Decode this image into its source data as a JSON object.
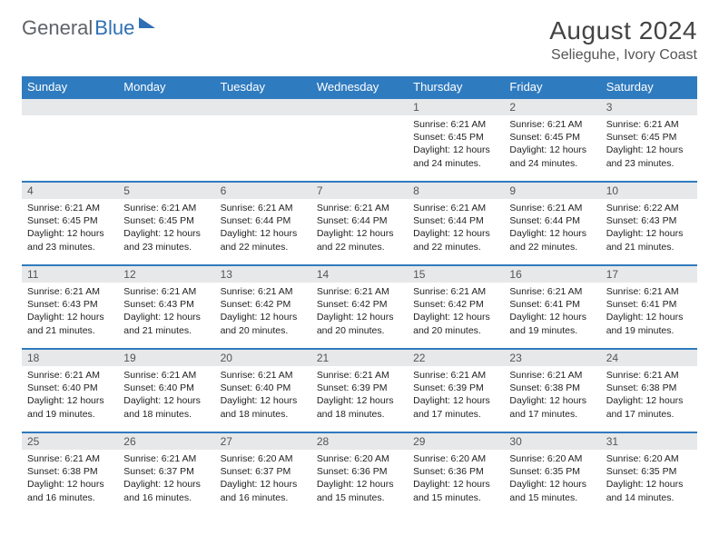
{
  "logo": {
    "word1": "General",
    "word2": "Blue"
  },
  "title": "August 2024",
  "location": "Selieguhe, Ivory Coast",
  "colors": {
    "header_bg": "#2f7bbf",
    "header_text": "#ffffff",
    "daynum_bg": "#e7e8ea",
    "row_border": "#2f7bbf",
    "logo_gray": "#5f6368",
    "logo_blue": "#2f6fb5"
  },
  "weekdays": [
    "Sunday",
    "Monday",
    "Tuesday",
    "Wednesday",
    "Thursday",
    "Friday",
    "Saturday"
  ],
  "cells": [
    {
      "day": "",
      "lines": []
    },
    {
      "day": "",
      "lines": []
    },
    {
      "day": "",
      "lines": []
    },
    {
      "day": "",
      "lines": []
    },
    {
      "day": "1",
      "lines": [
        "Sunrise: 6:21 AM",
        "Sunset: 6:45 PM",
        "Daylight: 12 hours and 24 minutes."
      ]
    },
    {
      "day": "2",
      "lines": [
        "Sunrise: 6:21 AM",
        "Sunset: 6:45 PM",
        "Daylight: 12 hours and 24 minutes."
      ]
    },
    {
      "day": "3",
      "lines": [
        "Sunrise: 6:21 AM",
        "Sunset: 6:45 PM",
        "Daylight: 12 hours and 23 minutes."
      ]
    },
    {
      "day": "4",
      "lines": [
        "Sunrise: 6:21 AM",
        "Sunset: 6:45 PM",
        "Daylight: 12 hours and 23 minutes."
      ]
    },
    {
      "day": "5",
      "lines": [
        "Sunrise: 6:21 AM",
        "Sunset: 6:45 PM",
        "Daylight: 12 hours and 23 minutes."
      ]
    },
    {
      "day": "6",
      "lines": [
        "Sunrise: 6:21 AM",
        "Sunset: 6:44 PM",
        "Daylight: 12 hours and 22 minutes."
      ]
    },
    {
      "day": "7",
      "lines": [
        "Sunrise: 6:21 AM",
        "Sunset: 6:44 PM",
        "Daylight: 12 hours and 22 minutes."
      ]
    },
    {
      "day": "8",
      "lines": [
        "Sunrise: 6:21 AM",
        "Sunset: 6:44 PM",
        "Daylight: 12 hours and 22 minutes."
      ]
    },
    {
      "day": "9",
      "lines": [
        "Sunrise: 6:21 AM",
        "Sunset: 6:44 PM",
        "Daylight: 12 hours and 22 minutes."
      ]
    },
    {
      "day": "10",
      "lines": [
        "Sunrise: 6:22 AM",
        "Sunset: 6:43 PM",
        "Daylight: 12 hours and 21 minutes."
      ]
    },
    {
      "day": "11",
      "lines": [
        "Sunrise: 6:21 AM",
        "Sunset: 6:43 PM",
        "Daylight: 12 hours and 21 minutes."
      ]
    },
    {
      "day": "12",
      "lines": [
        "Sunrise: 6:21 AM",
        "Sunset: 6:43 PM",
        "Daylight: 12 hours and 21 minutes."
      ]
    },
    {
      "day": "13",
      "lines": [
        "Sunrise: 6:21 AM",
        "Sunset: 6:42 PM",
        "Daylight: 12 hours and 20 minutes."
      ]
    },
    {
      "day": "14",
      "lines": [
        "Sunrise: 6:21 AM",
        "Sunset: 6:42 PM",
        "Daylight: 12 hours and 20 minutes."
      ]
    },
    {
      "day": "15",
      "lines": [
        "Sunrise: 6:21 AM",
        "Sunset: 6:42 PM",
        "Daylight: 12 hours and 20 minutes."
      ]
    },
    {
      "day": "16",
      "lines": [
        "Sunrise: 6:21 AM",
        "Sunset: 6:41 PM",
        "Daylight: 12 hours and 19 minutes."
      ]
    },
    {
      "day": "17",
      "lines": [
        "Sunrise: 6:21 AM",
        "Sunset: 6:41 PM",
        "Daylight: 12 hours and 19 minutes."
      ]
    },
    {
      "day": "18",
      "lines": [
        "Sunrise: 6:21 AM",
        "Sunset: 6:40 PM",
        "Daylight: 12 hours and 19 minutes."
      ]
    },
    {
      "day": "19",
      "lines": [
        "Sunrise: 6:21 AM",
        "Sunset: 6:40 PM",
        "Daylight: 12 hours and 18 minutes."
      ]
    },
    {
      "day": "20",
      "lines": [
        "Sunrise: 6:21 AM",
        "Sunset: 6:40 PM",
        "Daylight: 12 hours and 18 minutes."
      ]
    },
    {
      "day": "21",
      "lines": [
        "Sunrise: 6:21 AM",
        "Sunset: 6:39 PM",
        "Daylight: 12 hours and 18 minutes."
      ]
    },
    {
      "day": "22",
      "lines": [
        "Sunrise: 6:21 AM",
        "Sunset: 6:39 PM",
        "Daylight: 12 hours and 17 minutes."
      ]
    },
    {
      "day": "23",
      "lines": [
        "Sunrise: 6:21 AM",
        "Sunset: 6:38 PM",
        "Daylight: 12 hours and 17 minutes."
      ]
    },
    {
      "day": "24",
      "lines": [
        "Sunrise: 6:21 AM",
        "Sunset: 6:38 PM",
        "Daylight: 12 hours and 17 minutes."
      ]
    },
    {
      "day": "25",
      "lines": [
        "Sunrise: 6:21 AM",
        "Sunset: 6:38 PM",
        "Daylight: 12 hours and 16 minutes."
      ]
    },
    {
      "day": "26",
      "lines": [
        "Sunrise: 6:21 AM",
        "Sunset: 6:37 PM",
        "Daylight: 12 hours and 16 minutes."
      ]
    },
    {
      "day": "27",
      "lines": [
        "Sunrise: 6:20 AM",
        "Sunset: 6:37 PM",
        "Daylight: 12 hours and 16 minutes."
      ]
    },
    {
      "day": "28",
      "lines": [
        "Sunrise: 6:20 AM",
        "Sunset: 6:36 PM",
        "Daylight: 12 hours and 15 minutes."
      ]
    },
    {
      "day": "29",
      "lines": [
        "Sunrise: 6:20 AM",
        "Sunset: 6:36 PM",
        "Daylight: 12 hours and 15 minutes."
      ]
    },
    {
      "day": "30",
      "lines": [
        "Sunrise: 6:20 AM",
        "Sunset: 6:35 PM",
        "Daylight: 12 hours and 15 minutes."
      ]
    },
    {
      "day": "31",
      "lines": [
        "Sunrise: 6:20 AM",
        "Sunset: 6:35 PM",
        "Daylight: 12 hours and 14 minutes."
      ]
    }
  ]
}
